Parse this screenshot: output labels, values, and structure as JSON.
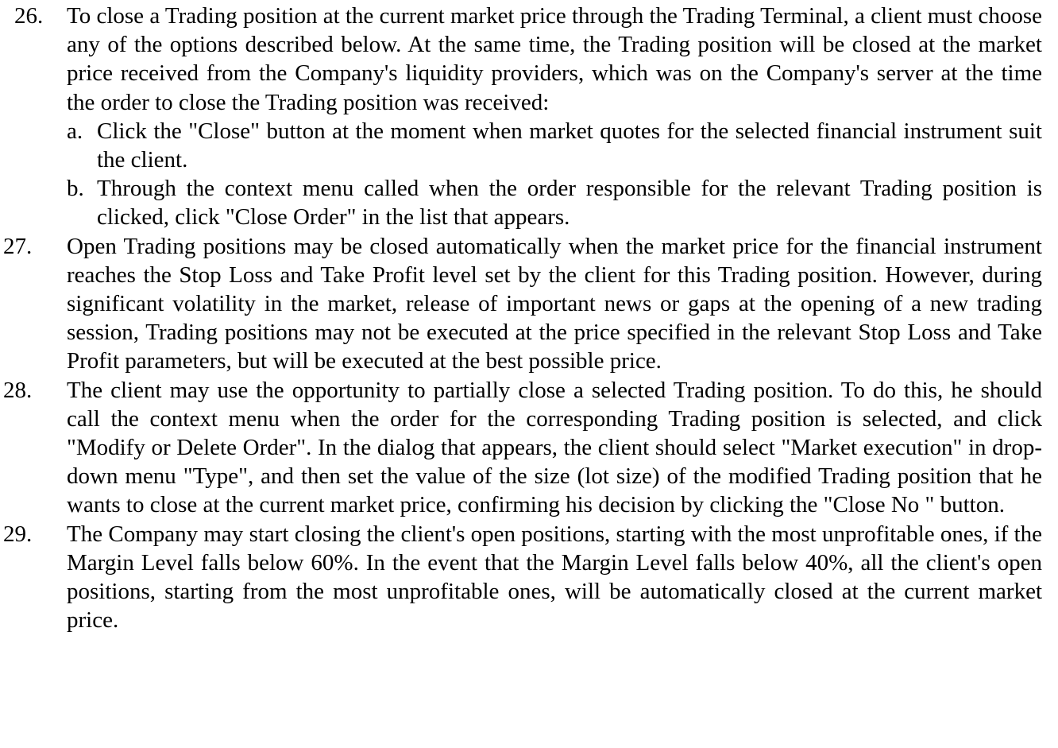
{
  "items": [
    {
      "number": "26.",
      "text": "To close a Trading position at the current market price through the Trading Terminal, a client must choose any of the options described below. At the same time, the Trading position will be closed at the market price received from the Company's liquidity providers, which was on the Company's server at the time the order to close the Trading position was received:",
      "subitems": [
        {
          "letter": "a.",
          "text": "Click the \"Close\" button at the moment when market quotes for the selected financial instrument suit the client."
        },
        {
          "letter": "b.",
          "text": "Through the context menu called when the order responsible for the relevant Trading position is clicked, click \"Close Order\" in the list that appears.  "
        }
      ]
    },
    {
      "number": "27.",
      "text": "Open Trading positions may be closed automatically when the market price for the financial instrument reaches the Stop Loss and Take Profit level set by the client for this Trading position. However, during significant volatility in the market, release of important news or gaps at the opening of a new trading session, Trading positions may not be executed at the price specified in the relevant Stop Loss and Take Profit parameters, but will be executed at the best possible price."
    },
    {
      "number": "28.",
      "text": "The client may use the opportunity to partially close a selected Trading position. To do this, he should call the context menu when the order for the corresponding Trading position is selected, and click \"Modify or Delete Order\". In the dialog that appears, the client should select \"Market execution\" in drop-down menu \"Type\", and then set the value of the size (lot size) of the modified Trading position that he wants to close at the current market price, confirming his decision by clicking the \"Close No \" button."
    },
    {
      "number": "29.",
      "text": "The Company may start closing the client's open positions, starting with the most unprofitable ones, if the Margin Level falls below 60%. In the event that the Margin Level falls below 40%, all the client's open positions, starting from the most unprofitable ones, will be automatically closed at the current market price."
    }
  ]
}
